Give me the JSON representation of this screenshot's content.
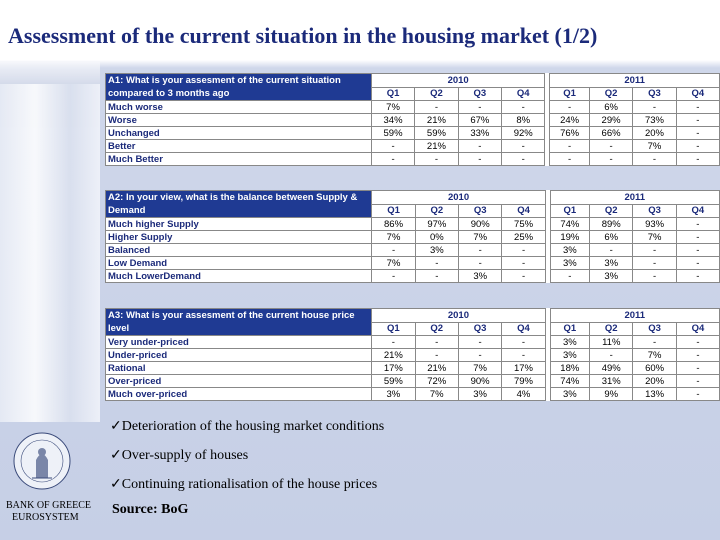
{
  "title": "Assessment of the current situation in the housing market (1/2)",
  "years": [
    "2010",
    "2011"
  ],
  "quarters": [
    "Q1",
    "Q2",
    "Q3",
    "Q4",
    "Q1",
    "Q2",
    "Q3",
    "Q4"
  ],
  "tables": [
    {
      "question": "A1: What is your assesment of the current situation compared to 3 months ago",
      "rows": [
        {
          "label": "Much worse",
          "values": [
            "7%",
            "-",
            "-",
            "-",
            "-",
            "6%",
            "-",
            "-"
          ]
        },
        {
          "label": "Worse",
          "values": [
            "34%",
            "21%",
            "67%",
            "8%",
            "24%",
            "29%",
            "73%",
            "-"
          ]
        },
        {
          "label": "Unchanged",
          "values": [
            "59%",
            "59%",
            "33%",
            "92%",
            "76%",
            "66%",
            "20%",
            "-"
          ]
        },
        {
          "label": "Better",
          "values": [
            "-",
            "21%",
            "-",
            "-",
            "-",
            "-",
            "7%",
            "-"
          ]
        },
        {
          "label": "Much Better",
          "values": [
            "-",
            "-",
            "-",
            "-",
            "-",
            "-",
            "-",
            "-"
          ]
        }
      ]
    },
    {
      "question": "A2: In your view, what is the balance between Supply & Demand",
      "rows": [
        {
          "label": "Much higher Supply",
          "values": [
            "86%",
            "97%",
            "90%",
            "75%",
            "74%",
            "89%",
            "93%",
            "-"
          ]
        },
        {
          "label": "Higher Supply",
          "values": [
            "7%",
            "0%",
            "7%",
            "25%",
            "19%",
            "6%",
            "7%",
            "-"
          ]
        },
        {
          "label": "Balanced",
          "values": [
            "-",
            "3%",
            "-",
            "-",
            "3%",
            "-",
            "-",
            "-"
          ]
        },
        {
          "label": "Low Demand",
          "values": [
            "7%",
            "-",
            "-",
            "-",
            "3%",
            "3%",
            "-",
            "-"
          ]
        },
        {
          "label": "Much LowerDemand",
          "values": [
            "-",
            "-",
            "3%",
            "-",
            "-",
            "3%",
            "-",
            "-"
          ]
        }
      ]
    },
    {
      "question": "A3: What is your assesment of the current house price level",
      "rows": [
        {
          "label": "Very under-priced",
          "values": [
            "-",
            "-",
            "-",
            "-",
            "3%",
            "11%",
            "-",
            "-"
          ]
        },
        {
          "label": "Under-priced",
          "values": [
            "21%",
            "-",
            "-",
            "-",
            "3%",
            "-",
            "7%",
            "-"
          ]
        },
        {
          "label": "Rational",
          "values": [
            "17%",
            "21%",
            "7%",
            "17%",
            "18%",
            "49%",
            "60%",
            "-"
          ]
        },
        {
          "label": "Over-priced",
          "values": [
            "59%",
            "72%",
            "90%",
            "79%",
            "74%",
            "31%",
            "20%",
            "-"
          ]
        },
        {
          "label": "Much over-priced",
          "values": [
            "3%",
            "7%",
            "3%",
            "4%",
            "3%",
            "9%",
            "13%",
            "-"
          ]
        }
      ]
    }
  ],
  "bullets": [
    "✓Deterioration of the housing market conditions",
    "✓Over-supply of houses",
    "✓Continuing rationalisation of the house prices"
  ],
  "footer": {
    "org_line1": "BANK OF GREECE",
    "org_line2": "EUROSYSTEM",
    "source": "Source: BoG"
  },
  "colors": {
    "title": "#1b2a7a",
    "header_fill": "#1f3a93",
    "background": "#c6cfe6"
  }
}
